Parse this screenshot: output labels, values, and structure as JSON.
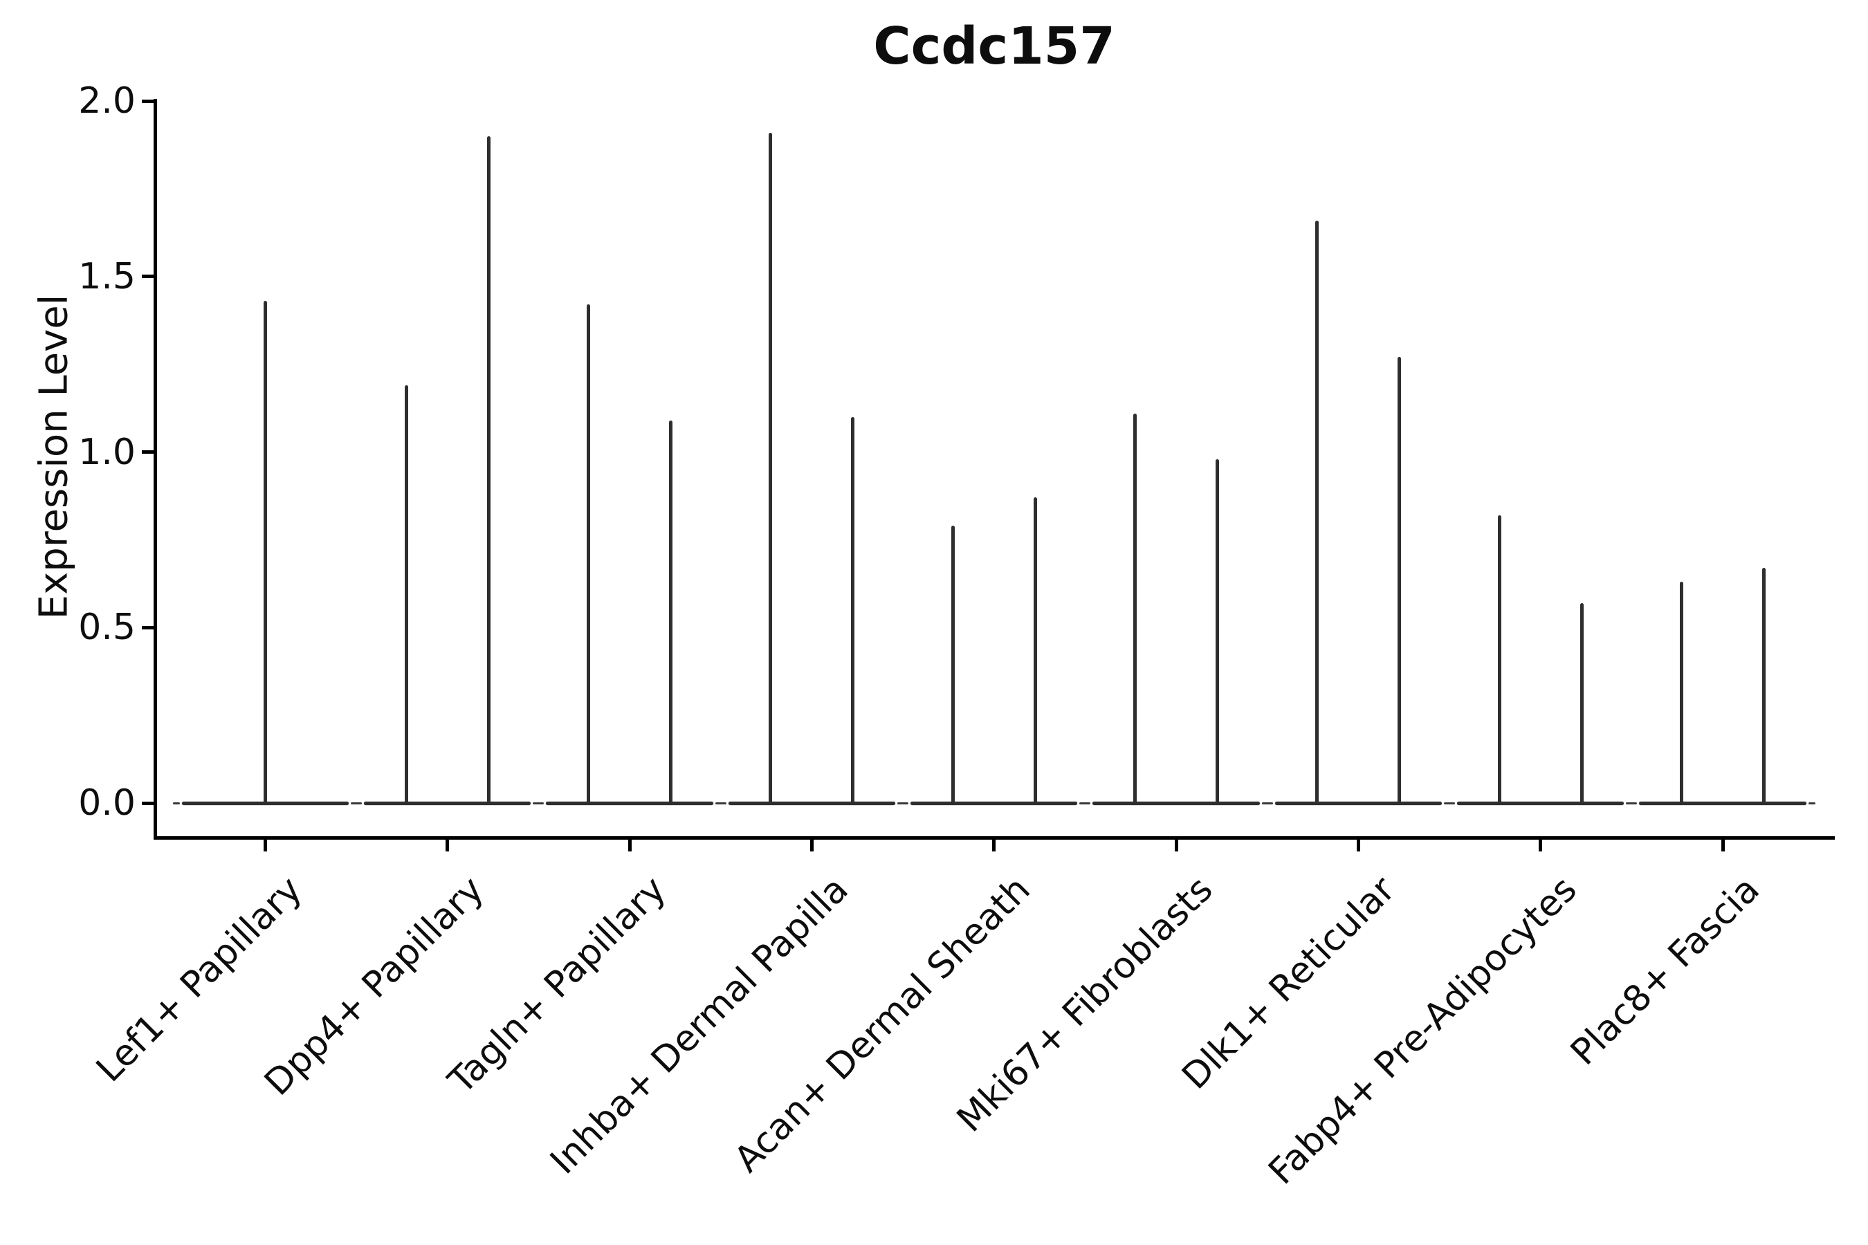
{
  "title": "Ccdc157",
  "y_axis": {
    "label": "Expression Level",
    "tick_labels": [
      "0.0",
      "0.5",
      "1.0",
      "1.5",
      "2.0"
    ],
    "tick_values": [
      0.0,
      0.5,
      1.0,
      1.5,
      2.0
    ]
  },
  "chart_data": {
    "type": "violin",
    "title": "Ccdc157",
    "xlabel": "",
    "ylabel": "Expression Level",
    "ylim": [
      -0.095,
      2.0
    ],
    "yticks": [
      0.0,
      0.5,
      1.0,
      1.5,
      2.0
    ],
    "grid": false,
    "legend": "none",
    "description": "Single-cell gene expression violin plot; each group shows a wide flat density at 0 with thin spikes reaching the maximum expression values of rare expressing cells.",
    "base_halfwidth": 0.458,
    "categories": [
      {
        "label": "Lef1+ Papillary",
        "spikes": [
          {
            "offset": 0,
            "max": 1.43
          }
        ]
      },
      {
        "label": "Dpp4+ Papillary",
        "spikes": [
          {
            "offset": -0.226,
            "max": 1.19
          },
          {
            "offset": 0.226,
            "max": 1.9
          }
        ]
      },
      {
        "label": "Tagln+ Papillary",
        "spikes": [
          {
            "offset": -0.226,
            "max": 1.42
          },
          {
            "offset": 0.226,
            "max": 1.09
          }
        ]
      },
      {
        "label": "Inhba+ Dermal Papilla",
        "spikes": [
          {
            "offset": -0.226,
            "max": 1.91
          },
          {
            "offset": 0.226,
            "max": 1.1
          }
        ]
      },
      {
        "label": "Acan+ Dermal Sheath",
        "spikes": [
          {
            "offset": -0.226,
            "max": 0.79
          },
          {
            "offset": 0.226,
            "max": 0.87
          }
        ]
      },
      {
        "label": "Mki67+ Fibroblasts",
        "spikes": [
          {
            "offset": -0.226,
            "max": 1.11
          },
          {
            "offset": 0.226,
            "max": 0.98
          }
        ]
      },
      {
        "label": "Dlk1+ Reticular",
        "spikes": [
          {
            "offset": -0.226,
            "max": 1.66
          },
          {
            "offset": 0.226,
            "max": 1.27
          }
        ]
      },
      {
        "label": "Fabp4+ Pre-Adipocytes",
        "spikes": [
          {
            "offset": -0.226,
            "max": 0.82
          },
          {
            "offset": 0.226,
            "max": 0.57
          }
        ]
      },
      {
        "label": "Plac8+ Fascia",
        "spikes": [
          {
            "offset": -0.226,
            "max": 0.63
          },
          {
            "offset": 0.226,
            "max": 0.67
          }
        ]
      }
    ]
  }
}
